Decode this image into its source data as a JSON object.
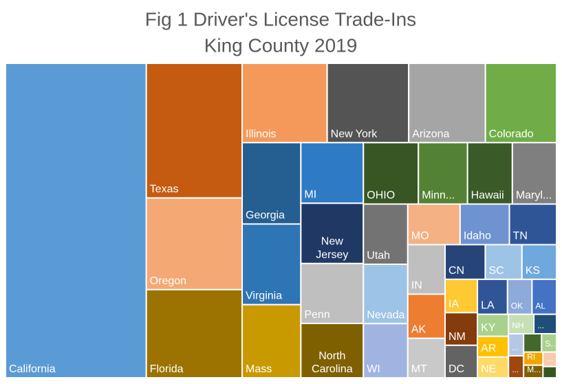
{
  "chart_data": {
    "type": "treemap",
    "title": "Fig 1 Driver's License Trade-Ins",
    "subtitle": "King County 2019",
    "items": [
      {
        "name": "California",
        "color": "#5b9bd5",
        "value": 90486
      },
      {
        "name": "Texas",
        "color": "#c55a11",
        "value": 26384
      },
      {
        "name": "Oregon",
        "color": "#f4a873",
        "value": 17952
      },
      {
        "name": "Florida",
        "color": "#9c7300",
        "value": 17272
      },
      {
        "name": "Illinois",
        "color": "#f4995a",
        "value": 13786
      },
      {
        "name": "New York",
        "color": "#545454",
        "value": 13221
      },
      {
        "name": "Arizona",
        "color": "#a5a5a5",
        "value": 12430
      },
      {
        "name": "Colorado",
        "color": "#70ad47",
        "value": 11526
      },
      {
        "name": "Georgia",
        "color": "#255e91",
        "value": 9758
      },
      {
        "name": "Virginia",
        "color": "#2e75b6",
        "value": 9676
      },
      {
        "name": "Mass",
        "color": "#c99a00",
        "value": 8774
      },
      {
        "name": "MI",
        "color": "#2f7ac4",
        "value": 7744
      },
      {
        "name": "New Jersey",
        "color": "#203864",
        "value": 7700
      },
      {
        "name": "Penn",
        "color": "#bfbfbf",
        "value": 7656
      },
      {
        "name": "North Carolina",
        "color": "#7f6000",
        "value": 6952
      },
      {
        "name": "OHIO",
        "color": "#375623",
        "value": 6901
      },
      {
        "name": "Minn...",
        "color": "#548235",
        "value": 6164
      },
      {
        "name": "Hawaii",
        "color": "#3a5a27",
        "value": 5628
      },
      {
        "name": "Maryl...",
        "color": "#7f7f7f",
        "value": 5538
      },
      {
        "name": "Utah",
        "color": "#737373",
        "value": 5460
      },
      {
        "name": "Nevada",
        "color": "#9dc3e6",
        "value": 5382
      },
      {
        "name": "WI",
        "color": "#9fb4e0",
        "value": 4914
      },
      {
        "name": "MO",
        "color": "#f4b183",
        "value": 4340
      },
      {
        "name": "Idaho",
        "color": "#6f93d0",
        "value": 4092
      },
      {
        "name": "TN",
        "color": "#2f5597",
        "value": 3906
      },
      {
        "name": "IN",
        "color": "#bfbfbf",
        "value": 3774
      },
      {
        "name": "AK",
        "color": "#ed7d31",
        "value": 3366
      },
      {
        "name": "MT",
        "color": "#c9c9c9",
        "value": 3009
      },
      {
        "name": "CN",
        "color": "#264478",
        "value": 2850
      },
      {
        "name": "SC",
        "color": "#9dc3e6",
        "value": 2600
      },
      {
        "name": "KS",
        "color": "#6fa8dc",
        "value": 2450
      },
      {
        "name": "IA",
        "color": "#ffc933",
        "value": 2205
      },
      {
        "name": "NM",
        "color": "#843c0c",
        "value": 2160
      },
      {
        "name": "DC",
        "color": "#636363",
        "value": 2150
      },
      {
        "name": "LA",
        "color": "#2f5597",
        "value": 2150
      },
      {
        "name": "OK",
        "color": "#8eaadb",
        "value": 1750
      },
      {
        "name": "AL",
        "color": "#4472c4",
        "value": 1750
      },
      {
        "name": "KY",
        "color": "#a9d18e",
        "value": 1400
      },
      {
        "name": "AR",
        "color": "#ffc000",
        "value": 1316
      },
      {
        "name": "NE",
        "color": "#ffd966",
        "value": 1316
      },
      {
        "name": "NH",
        "color": "#c5e0b4",
        "value": 1008
      },
      {
        "name": "...",
        "color": "#1f4e79",
        "value": 900
      },
      {
        "name": "...",
        "color": "#b4c7e7",
        "value": 680
      },
      {
        "name": "...",
        "color": "#9e480e",
        "value": 680
      },
      {
        "name": null,
        "color": "#43682b",
        "value": 670
      },
      {
        "name": "S...",
        "color": "#a9d18e",
        "value": 560
      },
      {
        "name": "RI",
        "color": "#f0a500",
        "value": 520
      },
      {
        "name": "M...",
        "color": "#7f6000",
        "value": 500
      },
      {
        "name": "...",
        "color": "#f8cbad",
        "value": 400
      },
      {
        "name": null,
        "color": "#375623",
        "value": 310
      }
    ]
  }
}
